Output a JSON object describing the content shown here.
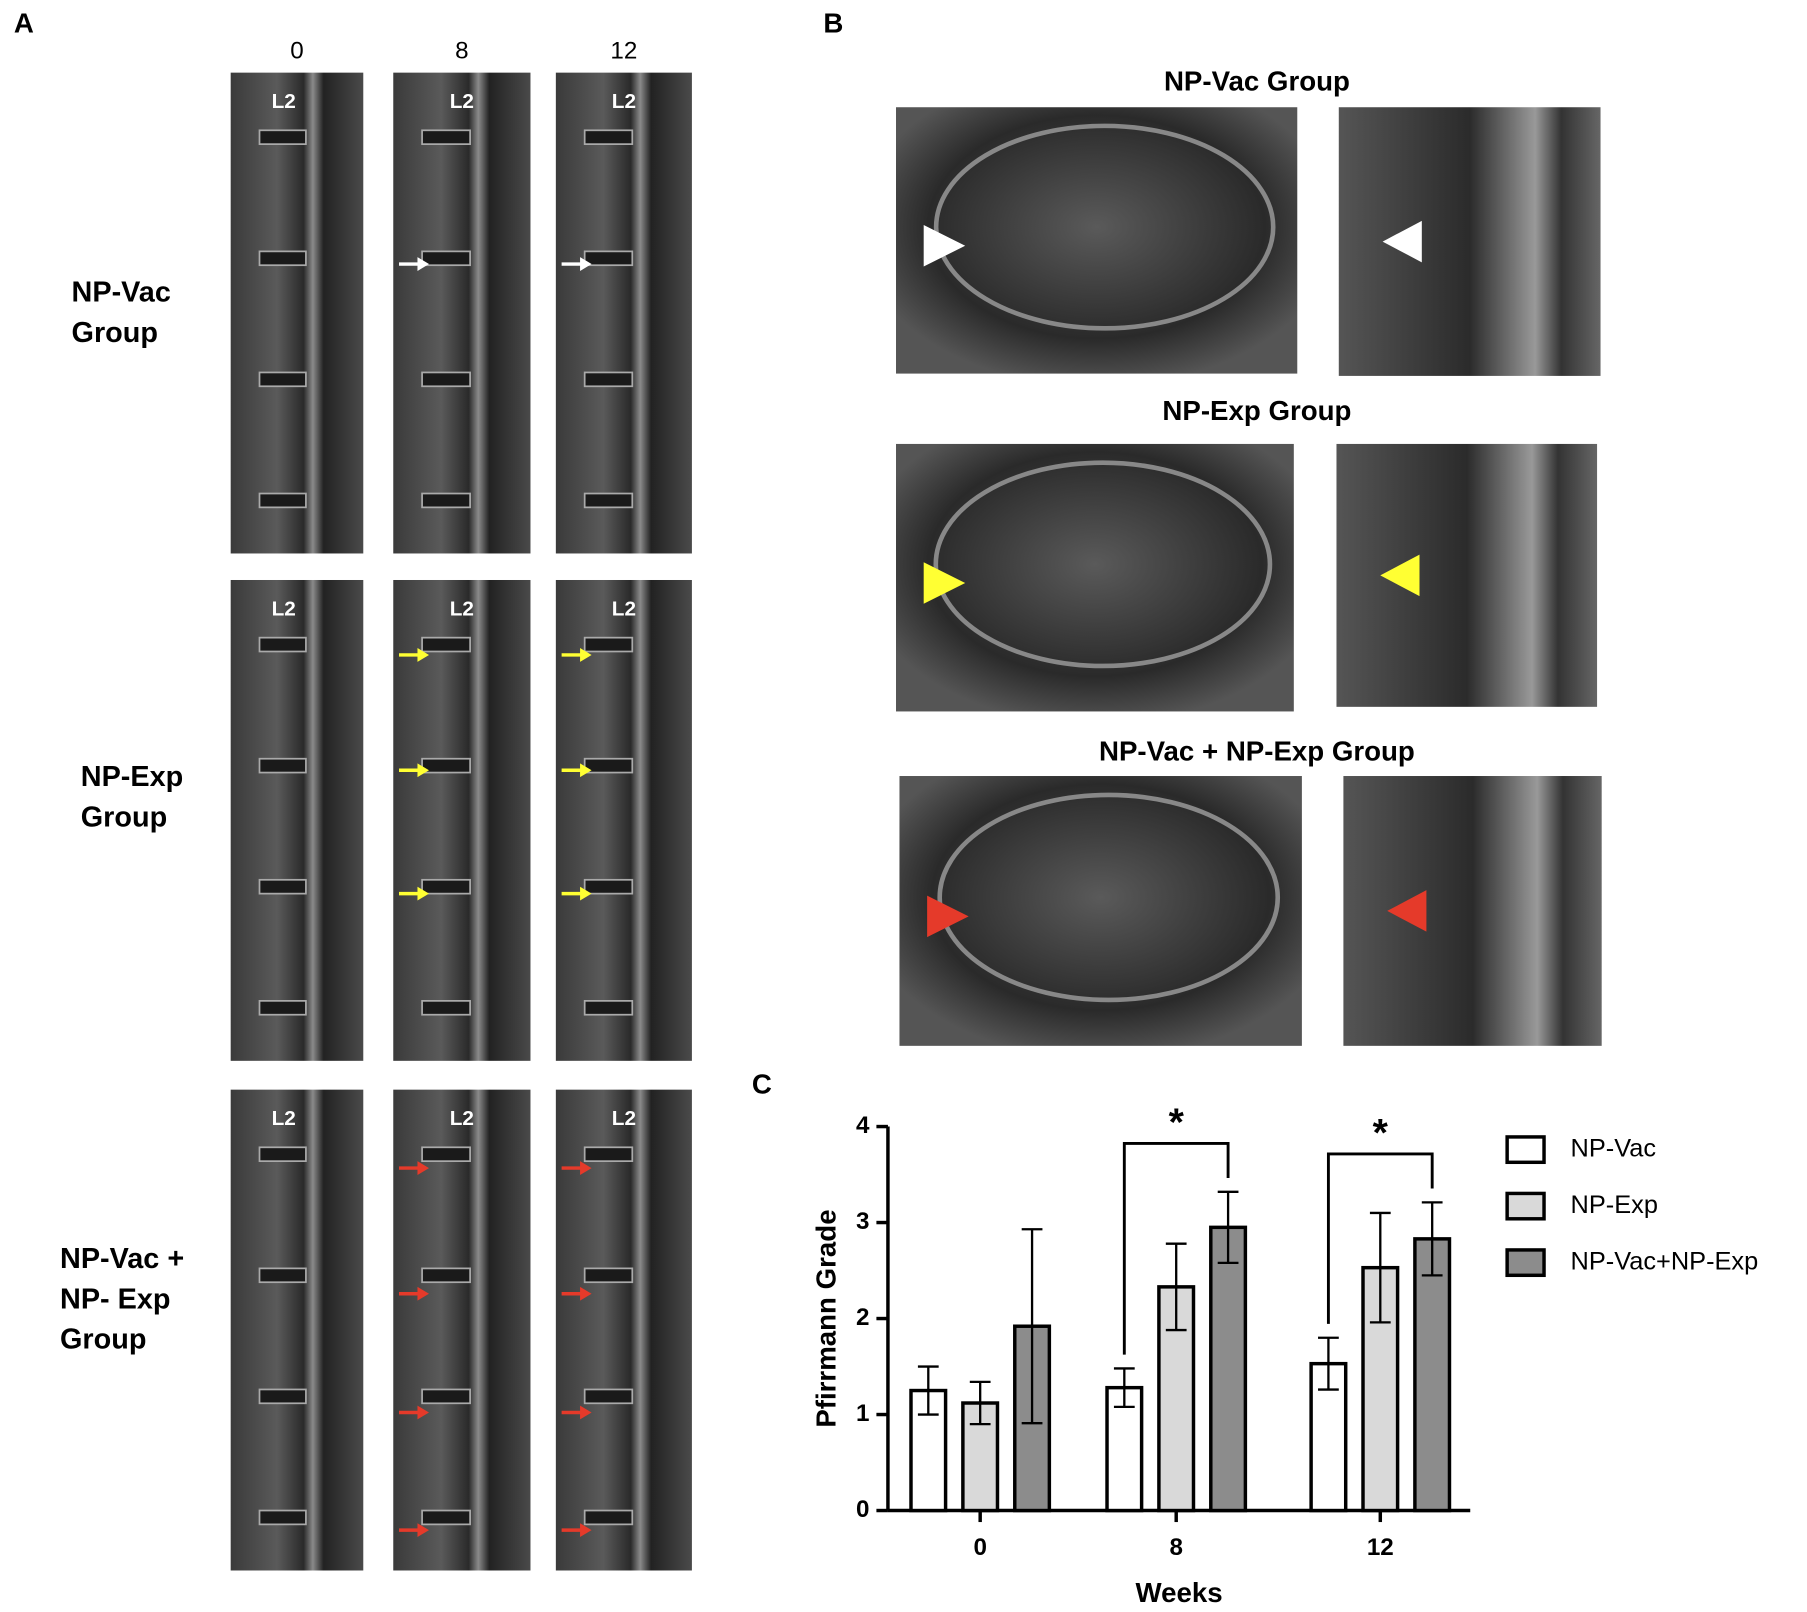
{
  "panel_labels": [
    "A",
    "B",
    "C"
  ],
  "panel_a": {
    "columns": [
      "0",
      "8",
      "12"
    ],
    "rows": [
      [
        "NP-Vac",
        "Group"
      ],
      [
        "NP-Exp",
        "Group"
      ],
      [
        "NP-Vac +",
        "NP- Exp",
        "Group"
      ]
    ],
    "level_label": "L2"
  },
  "panel_b": {
    "titles": [
      "NP-Vac Group",
      "NP-Exp Group",
      "NP-Vac + NP-Exp Group"
    ]
  },
  "chart_data": {
    "type": "bar",
    "y_label": "Pfirrmann Grade",
    "x_label": "Weeks",
    "categories": [
      "0",
      "8",
      "12"
    ],
    "series": [
      {
        "name": "NP-Vac",
        "color": "#ffffff",
        "values": [
          1.25,
          1.28,
          1.53
        ],
        "errors": [
          0.25,
          0.2,
          0.27
        ]
      },
      {
        "name": "NP-Exp",
        "color": "#d9d9d9",
        "values": [
          1.12,
          2.33,
          2.53
        ],
        "errors": [
          0.22,
          0.45,
          0.57
        ]
      },
      {
        "name": "NP-Vac+NP-Exp",
        "color": "#8c8c8c",
        "values": [
          1.92,
          2.95,
          2.83
        ],
        "errors": [
          1.01,
          0.37,
          0.38
        ]
      }
    ],
    "ylim": [
      0,
      4
    ],
    "yticks": [
      0,
      1,
      2,
      3,
      4
    ],
    "grid": false,
    "annotations": [
      {
        "text": "*",
        "category": "8"
      },
      {
        "text": "*",
        "category": "12"
      }
    ]
  }
}
